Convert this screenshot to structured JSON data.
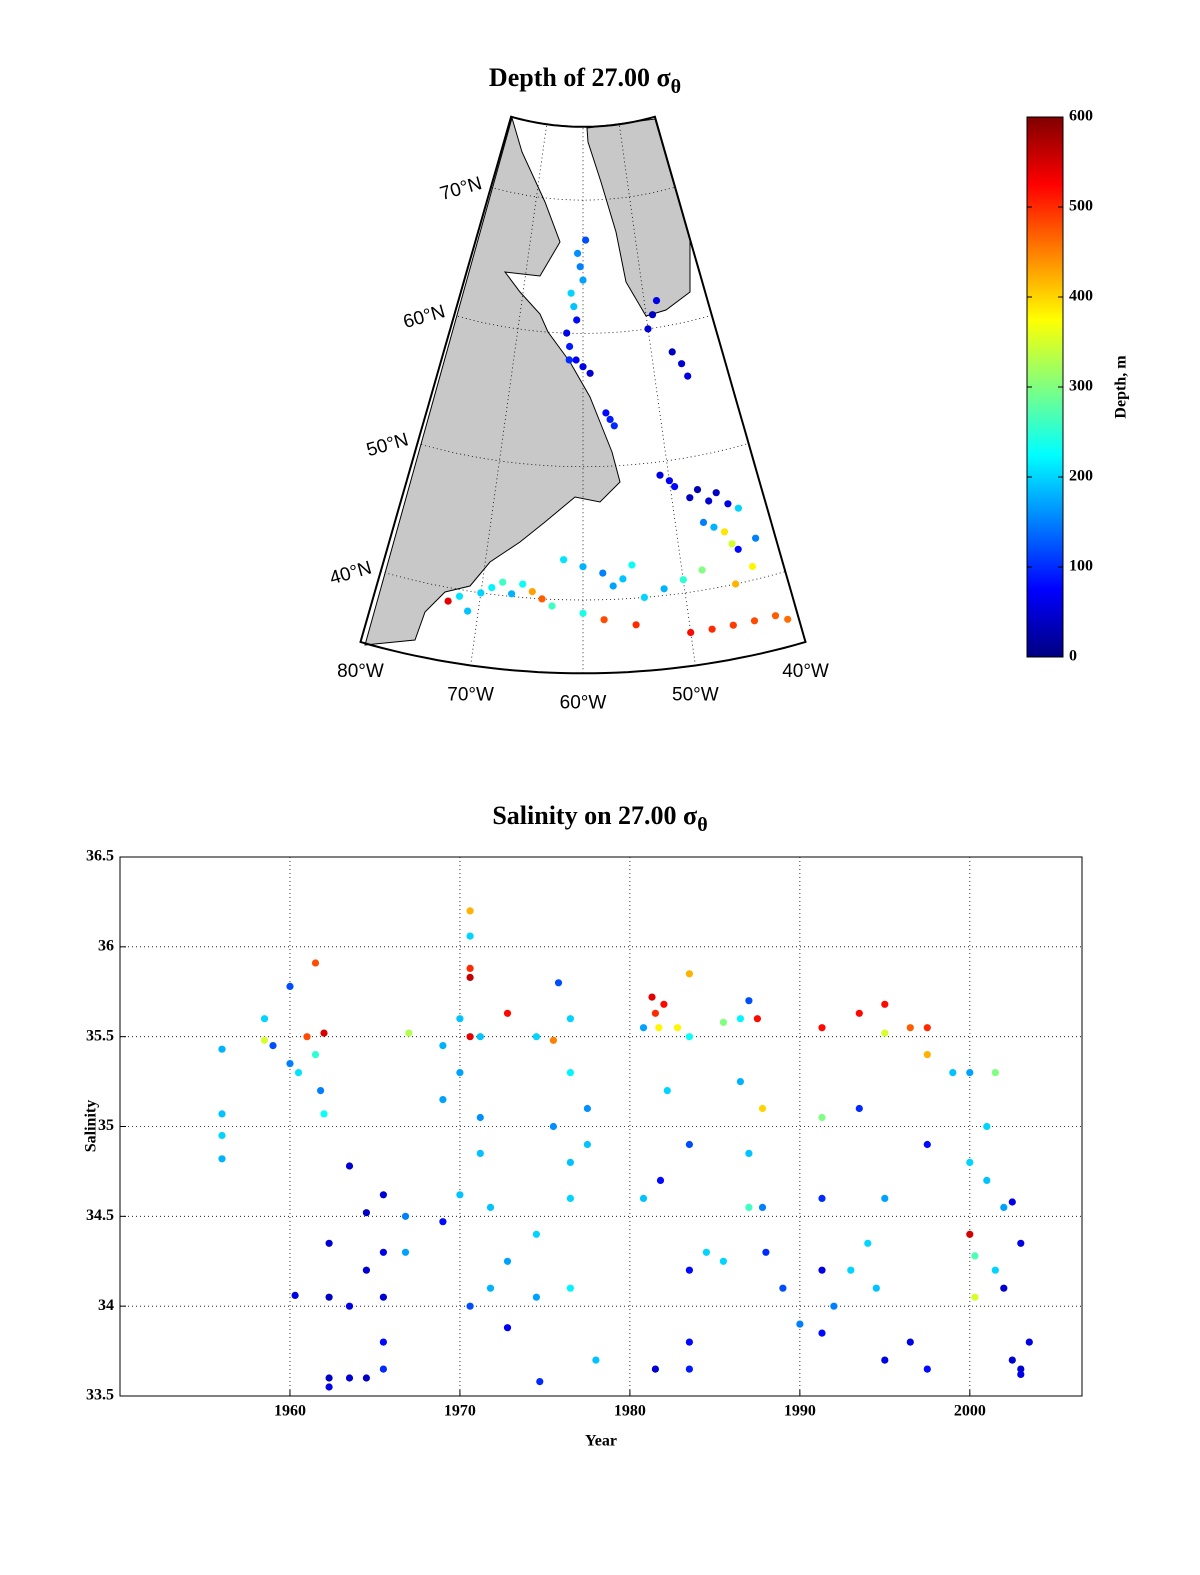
{
  "chart_data": [
    {
      "type": "map",
      "title": "Depth of 27.00 σ",
      "title_subscript": "θ",
      "lonlim": [
        -80,
        -40
      ],
      "latlim": [
        34.5,
        75.5
      ],
      "lonticks": [
        {
          "value": -80,
          "label": "80°W"
        },
        {
          "value": -70,
          "label": "70°W"
        },
        {
          "value": -60,
          "label": "60°W"
        },
        {
          "value": -50,
          "label": "50°W"
        },
        {
          "value": -40,
          "label": "40°W"
        }
      ],
      "latticks": [
        {
          "value": 40,
          "label": "40°N"
        },
        {
          "value": 50,
          "label": "50°N"
        },
        {
          "value": 60,
          "label": "60°N"
        },
        {
          "value": 70,
          "label": "70°N"
        }
      ],
      "grid": true,
      "colormap": "jet",
      "clim": [
        0,
        600
      ],
      "colorbar_label": "Depth, m",
      "colorbar_ticks": [
        0,
        100,
        200,
        300,
        400,
        500,
        600
      ],
      "lon": [
        -61,
        -60.5,
        -60,
        -59.5,
        -62,
        -61.5,
        -61,
        -62.5,
        -62,
        -62,
        -61,
        -60,
        -59,
        -50,
        -49,
        -48,
        -47,
        -46,
        -45.5,
        -57,
        -56.5,
        -56,
        -51,
        -50,
        -49.5,
        -48,
        -47,
        -46,
        -45,
        -44,
        -47,
        -46,
        -45,
        -44.5,
        -43,
        -50,
        -48,
        -46,
        -44,
        -42,
        -41,
        -62,
        -60,
        -58,
        -56,
        -55,
        -57,
        -70,
        -69,
        -68,
        -67,
        -66,
        -65,
        -64,
        -63,
        -72,
        -71,
        -73,
        -60,
        -54,
        -52,
        -50,
        -48,
        -44,
        -42,
        -43,
        -45,
        -58,
        -55
      ],
      "lat": [
        66,
        65,
        64,
        67,
        63,
        62,
        61,
        60,
        59,
        58,
        58,
        57.5,
        57,
        60,
        61,
        62,
        58,
        57,
        56,
        54,
        53.5,
        53,
        49,
        48.5,
        48,
        47,
        47.5,
        46.5,
        47,
        46,
        45,
        44.5,
        44,
        43,
        45.5,
        37,
        37,
        37,
        37,
        37,
        36.5,
        43,
        42.5,
        42,
        41.5,
        42.5,
        41,
        40,
        40.5,
        41,
        40.2,
        41,
        40.5,
        40,
        39.5,
        39.5,
        38.5,
        39,
        39,
        40,
        40.5,
        41,
        41.5,
        42.5,
        43,
        41,
        40,
        38.5,
        38
      ],
      "depth": [
        160,
        150,
        170,
        120,
        200,
        190,
        80,
        60,
        90,
        100,
        70,
        60,
        50,
        50,
        40,
        60,
        40,
        50,
        60,
        80,
        90,
        100,
        60,
        70,
        80,
        40,
        30,
        50,
        40,
        60,
        150,
        180,
        390,
        350,
        200,
        520,
        500,
        490,
        480,
        470,
        460,
        210,
        180,
        150,
        190,
        230,
        170,
        200,
        220,
        260,
        180,
        230,
        430,
        470,
        260,
        210,
        190,
        540,
        240,
        200,
        180,
        250,
        300,
        80,
        150,
        380,
        420,
        480,
        500
      ]
    },
    {
      "type": "scatter",
      "title": "Salinity on 27.00 σ",
      "title_subscript": "θ",
      "x_label": "Year",
      "y_label": "Salinity",
      "xlim": [
        1950,
        2006.6
      ],
      "ylim": [
        33.5,
        36.5
      ],
      "xticks": [
        1960,
        1970,
        1980,
        1990,
        2000
      ],
      "yticks": [
        33.5,
        34,
        34.5,
        35,
        35.5,
        36,
        36.5
      ],
      "grid": true,
      "x": [
        1956,
        1956,
        1956,
        1956,
        1958.5,
        1958.5,
        1959,
        1960,
        1960,
        1960.5,
        1961,
        1961.5,
        1961.5,
        1961.8,
        1962,
        1962,
        1960.3,
        1962.3,
        1962.3,
        1962.3,
        1962.3,
        1963.5,
        1963.5,
        1963.5,
        1964.5,
        1964.5,
        1964.5,
        1965.5,
        1965.5,
        1965.5,
        1965.5,
        1965.5,
        1966.8,
        1966.8,
        1967,
        1969,
        1969,
        1969,
        1970,
        1970,
        1970,
        1970.6,
        1970.6,
        1970.6,
        1970.6,
        1970.6,
        1970.6,
        1971.2,
        1971.2,
        1971.2,
        1971.8,
        1971.8,
        1972.8,
        1972.8,
        1972.8,
        1974.5,
        1974.5,
        1974.5,
        1974.7,
        1975.5,
        1975.5,
        1976.5,
        1976.5,
        1976.5,
        1976.5,
        1976.5,
        1975.8,
        1977.5,
        1977.5,
        1978,
        1980.8,
        1980.8,
        1981.3,
        1981.5,
        1981.7,
        1982,
        1982.2,
        1981.8,
        1981.5,
        1982.8,
        1983.5,
        1983.5,
        1983.5,
        1983.5,
        1983.5,
        1983.5,
        1984.5,
        1985.5,
        1985.5,
        1986.5,
        1986.5,
        1987,
        1987,
        1987,
        1987.5,
        1987.8,
        1987.8,
        1988,
        1989,
        1990,
        1991.3,
        1991.3,
        1991.3,
        1991.3,
        1991.3,
        1992,
        1993,
        1993.5,
        1993.5,
        1994,
        1994.5,
        1995,
        1995,
        1995,
        1995,
        1996.5,
        1996.5,
        1997.5,
        1997.5,
        1997.5,
        1997.5,
        1999,
        2000,
        2000,
        2000,
        2000.3,
        2000.3,
        2001,
        2001,
        2001.5,
        2001.5,
        2002,
        2002,
        2002.5,
        2002.5,
        2003,
        2003,
        2003,
        2003.5
      ],
      "values": [
        35.43,
        35.07,
        34.95,
        34.82,
        35.6,
        35.48,
        35.45,
        35.78,
        35.35,
        35.3,
        35.5,
        35.91,
        35.4,
        35.2,
        35.52,
        35.07,
        34.06,
        34.35,
        34.05,
        33.6,
        33.55,
        34.78,
        34.0,
        33.6,
        34.52,
        34.2,
        33.6,
        34.62,
        34.3,
        34.05,
        33.8,
        33.65,
        34.5,
        34.3,
        35.52,
        35.45,
        35.15,
        34.47,
        35.6,
        35.3,
        34.62,
        36.2,
        36.06,
        35.88,
        35.83,
        35.5,
        34.0,
        35.5,
        35.05,
        34.85,
        34.55,
        34.1,
        35.63,
        34.25,
        33.88,
        35.5,
        34.4,
        34.05,
        33.58,
        35.48,
        35.0,
        35.6,
        35.3,
        34.8,
        34.6,
        34.1,
        35.8,
        35.1,
        34.9,
        33.7,
        35.55,
        34.6,
        35.72,
        35.63,
        35.55,
        35.68,
        35.2,
        34.7,
        33.65,
        35.55,
        35.85,
        35.5,
        34.9,
        34.2,
        33.8,
        33.65,
        34.3,
        35.58,
        34.25,
        35.6,
        35.25,
        35.7,
        34.85,
        34.55,
        35.6,
        35.1,
        34.55,
        34.3,
        34.1,
        33.9,
        35.55,
        35.05,
        34.6,
        34.2,
        33.85,
        34.0,
        34.2,
        35.63,
        35.1,
        34.35,
        34.1,
        35.68,
        35.52,
        34.6,
        33.7,
        35.55,
        33.8,
        35.55,
        35.4,
        34.9,
        33.65,
        35.3,
        35.3,
        34.8,
        34.4,
        34.05,
        34.28,
        35.0,
        34.7,
        35.3,
        34.2,
        34.55,
        34.1,
        34.58,
        33.7,
        34.35,
        33.65,
        33.62,
        33.8
      ],
      "depth": [
        180,
        190,
        200,
        180,
        200,
        350,
        120,
        120,
        150,
        210,
        480,
        480,
        250,
        150,
        550,
        230,
        60,
        50,
        40,
        40,
        60,
        50,
        60,
        50,
        40,
        50,
        40,
        50,
        60,
        50,
        80,
        100,
        150,
        170,
        330,
        180,
        170,
        80,
        190,
        170,
        190,
        420,
        200,
        500,
        560,
        540,
        120,
        190,
        160,
        190,
        190,
        180,
        520,
        170,
        70,
        200,
        200,
        170,
        100,
        450,
        160,
        200,
        220,
        190,
        200,
        220,
        120,
        160,
        190,
        190,
        170,
        190,
        540,
        500,
        380,
        520,
        200,
        80,
        50,
        380,
        420,
        230,
        120,
        80,
        80,
        90,
        200,
        300,
        200,
        220,
        180,
        120,
        190,
        260,
        520,
        400,
        150,
        100,
        120,
        150,
        520,
        300,
        100,
        60,
        80,
        150,
        200,
        520,
        100,
        200,
        190,
        520,
        350,
        170,
        60,
        470,
        60,
        500,
        420,
        80,
        80,
        190,
        170,
        200,
        550,
        350,
        270,
        200,
        190,
        300,
        200,
        170,
        50,
        60,
        50,
        60,
        50,
        60,
        60
      ]
    }
  ]
}
